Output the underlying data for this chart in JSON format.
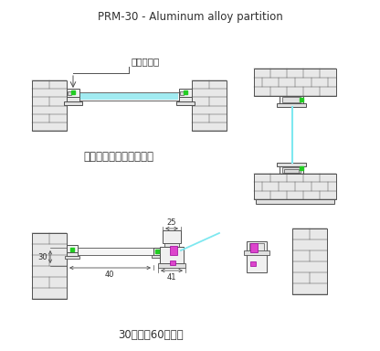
{
  "title": "PRM-30 - Aluminum alloy partition",
  "label_top": "二合一侧轨",
  "label_mid": "如单格情况，可用二合一",
  "label_bot": "30款匹配60厚门框",
  "dim_25": "25",
  "dim_30": "30",
  "dim_40": "40",
  "dim_41": "41",
  "bg_color": "#ffffff",
  "light_gray": "#e8e8e8",
  "mid_gray": "#d0d0d0",
  "dark_gray": "#909090",
  "green_color": "#22cc22",
  "cyan_color": "#7ee8f0",
  "magenta_color": "#dd44cc",
  "line_color": "#505050",
  "text_color": "#303030",
  "dim_color": "#505050"
}
